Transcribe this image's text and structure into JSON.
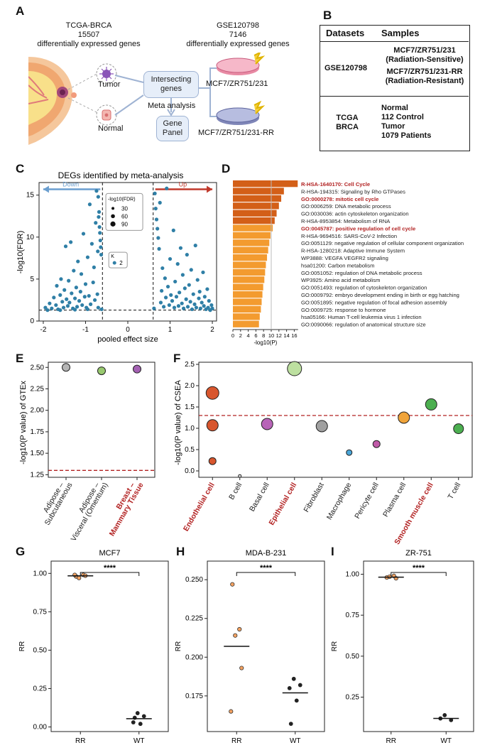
{
  "panel_labels": [
    "A",
    "B",
    "C",
    "D",
    "E",
    "F",
    "G",
    "H",
    "I"
  ],
  "panel_a": {
    "tcga_title": "TCGA-BRCA",
    "tcga_count": "15507",
    "tcga_desc": "differentially expressed genes",
    "gse_title": "GSE120798",
    "gse_count": "7146",
    "gse_desc": "differentially expressed genes",
    "tumor_label": "Tumor",
    "normal_label": "Normal",
    "intersect_label": "Intersecting genes",
    "meta_label": "Meta analysis",
    "panel_label": "Gene Panel",
    "mcf7_label": "MCF7/ZR751/231",
    "mcf7rr_label": "MCF7/ZR751/231-RR"
  },
  "panel_b": {
    "headers": [
      "Datasets",
      "Samples"
    ],
    "gse": "GSE120798",
    "gse_s1": "MCF7/ZR751/231",
    "gse_s1b": "(Radiation-Sensitive)",
    "gse_s2": "MCF7/ZR751/231-RR",
    "gse_s2b": "(Radiation-Resistant)",
    "tcga1": "TCGA",
    "tcga2": "BRCA",
    "t1": "Normal",
    "t2": "112 Control",
    "t3": "Tumor",
    "t4": "1079 Patients"
  },
  "colors": {
    "point": "#2f7fa6",
    "down": "#6a9ecf",
    "up": "#c0392b",
    "bar_dark": "#d35f18",
    "bar": "#f39b2f",
    "red_text": "#b22222"
  },
  "chart_data": [
    {
      "panel": "C",
      "type": "scatter",
      "title": "DEGs identified by meta-analysis",
      "xlabel": "pooled effect size",
      "ylabel": "-log10(FDR)",
      "xlim": [
        -2.1,
        2.1
      ],
      "ylim": [
        0,
        16.5
      ],
      "xticks": [
        -2,
        -1,
        0,
        1,
        2
      ],
      "yticks": [
        0,
        5,
        10,
        15
      ],
      "down_label": "Down",
      "up_label": "Up",
      "vlines": [
        -0.6,
        0.6
      ],
      "hline": 1.3,
      "legend_title": "-log10(FDR)",
      "legend_sizes": [
        "30",
        "60",
        "90"
      ],
      "legend_k_title": "K",
      "legend_k_value": "2",
      "points": [
        [
          -1.9,
          1.3
        ],
        [
          -1.85,
          2.1
        ],
        [
          -1.8,
          1.5
        ],
        [
          -1.75,
          2.8
        ],
        [
          -1.7,
          1.9
        ],
        [
          -1.68,
          4.2
        ],
        [
          -1.65,
          1.4
        ],
        [
          -1.6,
          3.1
        ],
        [
          -1.58,
          5.0
        ],
        [
          -1.55,
          2.3
        ],
        [
          -1.52,
          1.6
        ],
        [
          -1.5,
          3.7
        ],
        [
          -1.47,
          8.9
        ],
        [
          -1.45,
          2.6
        ],
        [
          -1.42,
          1.8
        ],
        [
          -1.4,
          4.8
        ],
        [
          -1.38,
          2.2
        ],
        [
          -1.35,
          9.4
        ],
        [
          -1.33,
          3.3
        ],
        [
          -1.3,
          1.5
        ],
        [
          -1.28,
          6.0
        ],
        [
          -1.25,
          2.7
        ],
        [
          -1.22,
          4.0
        ],
        [
          -1.2,
          1.7
        ],
        [
          -1.18,
          7.1
        ],
        [
          -1.15,
          2.4
        ],
        [
          -1.12,
          3.5
        ],
        [
          -1.1,
          5.6
        ],
        [
          -1.08,
          1.9
        ],
        [
          -1.05,
          10.4
        ],
        [
          -1.02,
          2.9
        ],
        [
          -1.0,
          4.4
        ],
        [
          -0.98,
          1.6
        ],
        [
          -0.95,
          7.6
        ],
        [
          -0.92,
          3.0
        ],
        [
          -0.9,
          13.9
        ],
        [
          -0.88,
          2.0
        ],
        [
          -0.85,
          9.2
        ],
        [
          -0.82,
          4.6
        ],
        [
          -0.8,
          6.4
        ],
        [
          -0.78,
          2.5
        ],
        [
          -0.76,
          11.7
        ],
        [
          -0.74,
          15.5
        ],
        [
          -0.72,
          3.2
        ],
        [
          -0.71,
          8.3
        ],
        [
          -0.7,
          14.8
        ],
        [
          -0.69,
          12.4
        ],
        [
          -0.68,
          13.0
        ],
        [
          -0.67,
          11.2
        ],
        [
          -0.66,
          10.5
        ],
        [
          -0.65,
          9.6
        ],
        [
          -0.64,
          8.8
        ],
        [
          -0.63,
          7.9
        ],
        [
          -0.62,
          1.4
        ],
        [
          -1.95,
          1.6
        ],
        [
          -1.6,
          1.3
        ],
        [
          -1.25,
          1.35
        ],
        [
          -0.95,
          1.4
        ],
        [
          -0.7,
          1.6
        ],
        [
          0.62,
          1.5
        ],
        [
          0.64,
          15.2
        ],
        [
          0.66,
          13.4
        ],
        [
          0.68,
          12.1
        ],
        [
          0.7,
          11.0
        ],
        [
          0.72,
          9.9
        ],
        [
          0.74,
          8.6
        ],
        [
          0.76,
          14.1
        ],
        [
          0.78,
          2.2
        ],
        [
          0.8,
          3.6
        ],
        [
          0.82,
          6.3
        ],
        [
          0.85,
          1.7
        ],
        [
          0.88,
          5.1
        ],
        [
          0.9,
          2.8
        ],
        [
          0.92,
          15.8
        ],
        [
          0.95,
          4.1
        ],
        [
          0.98,
          1.9
        ],
        [
          1.0,
          7.4
        ],
        [
          1.02,
          3.1
        ],
        [
          1.05,
          2.4
        ],
        [
          1.08,
          10.8
        ],
        [
          1.1,
          1.6
        ],
        [
          1.12,
          4.7
        ],
        [
          1.15,
          2.9
        ],
        [
          1.18,
          6.8
        ],
        [
          1.2,
          1.8
        ],
        [
          1.22,
          3.4
        ],
        [
          1.25,
          8.7
        ],
        [
          1.28,
          2.1
        ],
        [
          1.3,
          5.5
        ],
        [
          1.32,
          1.5
        ],
        [
          1.35,
          3.9
        ],
        [
          1.38,
          2.6
        ],
        [
          1.4,
          7.9
        ],
        [
          1.42,
          1.7
        ],
        [
          1.45,
          4.3
        ],
        [
          1.48,
          2.3
        ],
        [
          1.5,
          6.1
        ],
        [
          1.52,
          1.4
        ],
        [
          1.55,
          3.2
        ],
        [
          1.58,
          2.0
        ],
        [
          1.6,
          9.0
        ],
        [
          1.62,
          1.6
        ],
        [
          1.65,
          4.9
        ],
        [
          1.68,
          2.7
        ],
        [
          1.7,
          3.5
        ],
        [
          1.72,
          1.5
        ],
        [
          1.75,
          2.2
        ],
        [
          1.78,
          5.8
        ],
        [
          1.8,
          1.8
        ],
        [
          1.82,
          2.9
        ],
        [
          1.85,
          1.4
        ],
        [
          1.88,
          3.8
        ],
        [
          1.9,
          1.6
        ],
        [
          1.92,
          2.4
        ],
        [
          1.95,
          1.3
        ],
        [
          1.98,
          1.9
        ],
        [
          2.0,
          1.5
        ]
      ]
    },
    {
      "panel": "D",
      "type": "bar",
      "orientation": "horizontal",
      "xlabel": "-log10(P)",
      "xticks": [
        0,
        2,
        4,
        6,
        8,
        10,
        12,
        14,
        16
      ],
      "xlim": [
        0,
        17
      ],
      "vline": 10,
      "categories": [
        "R-HSA-1640170: Cell Cycle",
        "R-HSA-194315: Signaling by Rho GTPases",
        "GO:0000278: mitotic cell cycle",
        "GO:0006259: DNA metabolic process",
        "GO:0030036: actin cytoskeleton organization",
        "R-HSA-8953854: Metabolism of RNA",
        "GO:0045787: positive regulation of cell cycle",
        "R-HSA-9694516: SARS-CoV-2 Infection",
        "GO:0051129: negative regulation of cellular component organization",
        "R-HSA-1280218: Adaptive Immune System",
        "WP3888: VEGFA VEGFR2 signaling",
        "hsa01200: Carbon metabolism",
        "GO:0051052: regulation of DNA metabolic process",
        "WP3925: Amino acid metabolism",
        "GO:0051493: regulation of cytoskeleton organization",
        "GO:0009792: embryo development ending in birth or egg hatching",
        "GO:0051895: negative regulation of focal adhesion assembly",
        "GO:0009725: response to hormone",
        "hsa05166: Human T-cell leukemia virus 1 infection",
        "GO:0090066: regulation of anatomical structure size"
      ],
      "values": [
        16.9,
        13.3,
        12.6,
        12.0,
        11.4,
        10.9,
        10.4,
        9.8,
        9.5,
        9.2,
        8.9,
        8.6,
        8.4,
        8.2,
        7.9,
        7.7,
        7.5,
        7.3,
        7.0,
        6.8
      ],
      "highlight": [
        0,
        2,
        6
      ]
    },
    {
      "panel": "E",
      "type": "scatter",
      "ylabel": "-log10(P value) of GTEx",
      "ylim": [
        1.22,
        2.56
      ],
      "yticks": [
        "1.25",
        "1.50",
        "1.75",
        "2.00",
        "2.25",
        "2.50"
      ],
      "hline": 1.3,
      "categories": [
        {
          "l1": "Adipose –",
          "l2": "Subcutaneous",
          "highlight": false,
          "value": 2.5,
          "color": "#b5b5b5"
        },
        {
          "l1": "Adipose –",
          "l2": "Visceral (Omentum)",
          "highlight": false,
          "value": 2.46,
          "color": "#98c96f"
        },
        {
          "l1": "Breast –",
          "l2": "Mammary Tissue",
          "highlight": true,
          "value": 2.48,
          "color": "#a461b3"
        }
      ]
    },
    {
      "panel": "F",
      "type": "scatter",
      "ylabel": "-log10(P value) of CSEA",
      "ylim": [
        -0.15,
        2.55
      ],
      "yticks": [
        "0.0",
        "0.5",
        "1.0",
        "1.5",
        "2.0",
        "2.5"
      ],
      "hline": 1.3,
      "categories": [
        "Endothelial cell",
        "B cell",
        "Basal cell",
        "Epithelial cell",
        "Fibroblast",
        "Macrophage",
        "Pericyte cell",
        "Plasma cell",
        "Smooth muscle cell",
        "T cell"
      ],
      "highlight": [
        0,
        3,
        8
      ],
      "points": [
        {
          "x": 0,
          "y": 1.83,
          "r": 9,
          "color": "#d8562e"
        },
        {
          "x": 0,
          "y": 1.07,
          "r": 8,
          "color": "#d8562e"
        },
        {
          "x": 0,
          "y": 0.23,
          "r": 5,
          "color": "#d8562e"
        },
        {
          "x": 1,
          "y": -0.12,
          "r": 2,
          "color": "#e2e2e2"
        },
        {
          "x": 2,
          "y": 1.1,
          "r": 8,
          "color": "#b864b8"
        },
        {
          "x": 3,
          "y": 2.4,
          "r": 10,
          "color": "#bde0a0"
        },
        {
          "x": 4,
          "y": 1.05,
          "r": 8,
          "color": "#a0a0a0"
        },
        {
          "x": 5,
          "y": 0.43,
          "r": 4,
          "color": "#4aa6d8"
        },
        {
          "x": 6,
          "y": 0.63,
          "r": 5,
          "color": "#c05aa8"
        },
        {
          "x": 7,
          "y": 1.25,
          "r": 8,
          "color": "#f0a43a"
        },
        {
          "x": 8,
          "y": 1.56,
          "r": 8,
          "color": "#4caf50"
        },
        {
          "x": 9,
          "y": 0.99,
          "r": 7,
          "color": "#4caf50"
        }
      ]
    },
    {
      "panel": "G",
      "type": "scatter",
      "title": "MCF7",
      "ylabel": "RR",
      "categories": [
        "RR",
        "WT"
      ],
      "ylim": [
        -0.03,
        1.08
      ],
      "yticks": [
        "0.00",
        "0.25",
        "0.50",
        "0.75",
        "1.00"
      ],
      "sig": "****",
      "rr": [
        0.98,
        0.99,
        0.97,
        0.985,
        0.99
      ],
      "wt": [
        0.09,
        0.07,
        0.03,
        0.02,
        0.06
      ],
      "mean_rr": 0.984,
      "mean_wt": 0.054
    },
    {
      "panel": "H",
      "type": "scatter",
      "title": "MDA-B-231",
      "ylabel": "RR",
      "categories": [
        "RR",
        "WT"
      ],
      "ylim": [
        0.152,
        0.262
      ],
      "yticks": [
        "0.175",
        "0.200",
        "0.225",
        "0.250"
      ],
      "sig": "****",
      "rr": [
        0.247,
        0.218,
        0.214,
        0.193,
        0.165
      ],
      "wt": [
        0.186,
        0.182,
        0.18,
        0.172,
        0.157
      ],
      "mean_rr": 0.207,
      "mean_wt": 0.177
    },
    {
      "panel": "I",
      "type": "scatter",
      "title": "ZR-751",
      "ylabel": "RR",
      "categories": [
        "RR",
        "WT"
      ],
      "ylim": [
        0.04,
        1.08
      ],
      "yticks": [
        "0.25",
        "0.50",
        "0.75",
        "1.00"
      ],
      "sig": "****",
      "rr": [
        0.98,
        0.99,
        0.985,
        0.975
      ],
      "wt": [
        0.14,
        0.11,
        0.12
      ],
      "mean_rr": 0.982,
      "mean_wt": 0.12
    }
  ]
}
